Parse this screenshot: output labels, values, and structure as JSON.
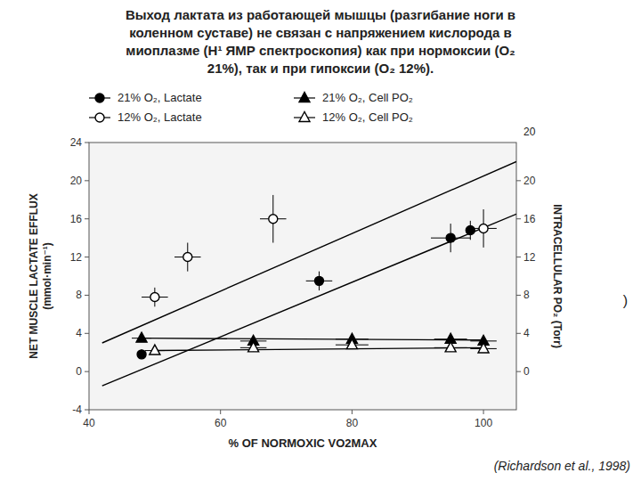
{
  "chart_data": {
    "type": "scatter",
    "title": "Выход лактата из работающей мышцы (разгибание ноги в\nколенном суставе) не связан с напряжением кислорода в\nмиоплазме (Н¹ ЯМР спектроскопия) как при нормоксии (О₂\n21%),  так и при гипоксии (О₂ 12%).",
    "x_label": "% OF NORMOXIC VO2MAX",
    "y_label": "NET MUSCLE LACTATE EFFLUX\n(mmol·min⁻¹)",
    "y2_label": "INTRACELLULAR PO₂ (Torr)",
    "annotations": [
      "20",
      ")",
      "(Richardson et al., 1998)"
    ],
    "xlim": [
      40,
      105
    ],
    "xticks": [
      40,
      60,
      80,
      100
    ],
    "ylim": [
      -4,
      24
    ],
    "yticks": [
      -4,
      0,
      4,
      8,
      12,
      16,
      20,
      24
    ],
    "y2lim": [
      -4,
      24
    ],
    "y2ticks": [
      0,
      4,
      8,
      12,
      16,
      20
    ],
    "grid": false,
    "legend": "above",
    "series": [
      {
        "name": "21% O₂, Lactate",
        "color": "#000000",
        "marker": "circle",
        "x": [
          48,
          75,
          95,
          98
        ],
        "values": [
          1.8,
          9.5,
          14.0,
          14.8
        ],
        "x_errors": [
          0,
          2,
          3,
          0
        ],
        "y_errors": [
          0.5,
          1.0,
          1.5,
          1.0
        ],
        "trend": {
          "x": [
            42,
            105
          ],
          "values": [
            -1.5,
            16.5
          ]
        }
      },
      {
        "name": "12% O₂, Lactate",
        "color": "#000000",
        "marker": "open-circle",
        "x": [
          50,
          55,
          68,
          100
        ],
        "values": [
          7.8,
          12.0,
          16.0,
          15.0
        ],
        "x_errors": [
          2,
          2,
          2,
          2
        ],
        "y_errors": [
          1.0,
          1.5,
          2.5,
          2.0
        ],
        "trend": {
          "x": [
            42,
            105
          ],
          "values": [
            3.0,
            22.0
          ]
        }
      },
      {
        "name": "21% O₂, Cell PO₂",
        "color": "#000000",
        "marker": "triangle",
        "axis": "y2",
        "x": [
          48,
          65,
          80,
          95,
          100
        ],
        "values": [
          3.5,
          3.2,
          3.4,
          3.4,
          3.2
        ],
        "x_errors": [
          1.5,
          2,
          2.5,
          2.5,
          2
        ],
        "y_errors": [
          0.4,
          0.3,
          0.3,
          0.3,
          0.3
        ],
        "trend": {
          "x": [
            48,
            100
          ],
          "values": [
            3.5,
            3.3
          ]
        }
      },
      {
        "name": "12% O₂, Cell PO₂",
        "color": "#000000",
        "marker": "open-triangle",
        "axis": "y2",
        "x": [
          50,
          65,
          80,
          95,
          100
        ],
        "values": [
          2.2,
          2.5,
          2.8,
          2.5,
          2.4
        ],
        "x_errors": [
          1.5,
          2,
          2.5,
          2.5,
          2
        ],
        "y_errors": [
          0.4,
          0.4,
          0.4,
          0.4,
          0.4
        ],
        "trend": {
          "x": [
            50,
            100
          ],
          "values": [
            2.2,
            2.5
          ]
        }
      }
    ]
  }
}
